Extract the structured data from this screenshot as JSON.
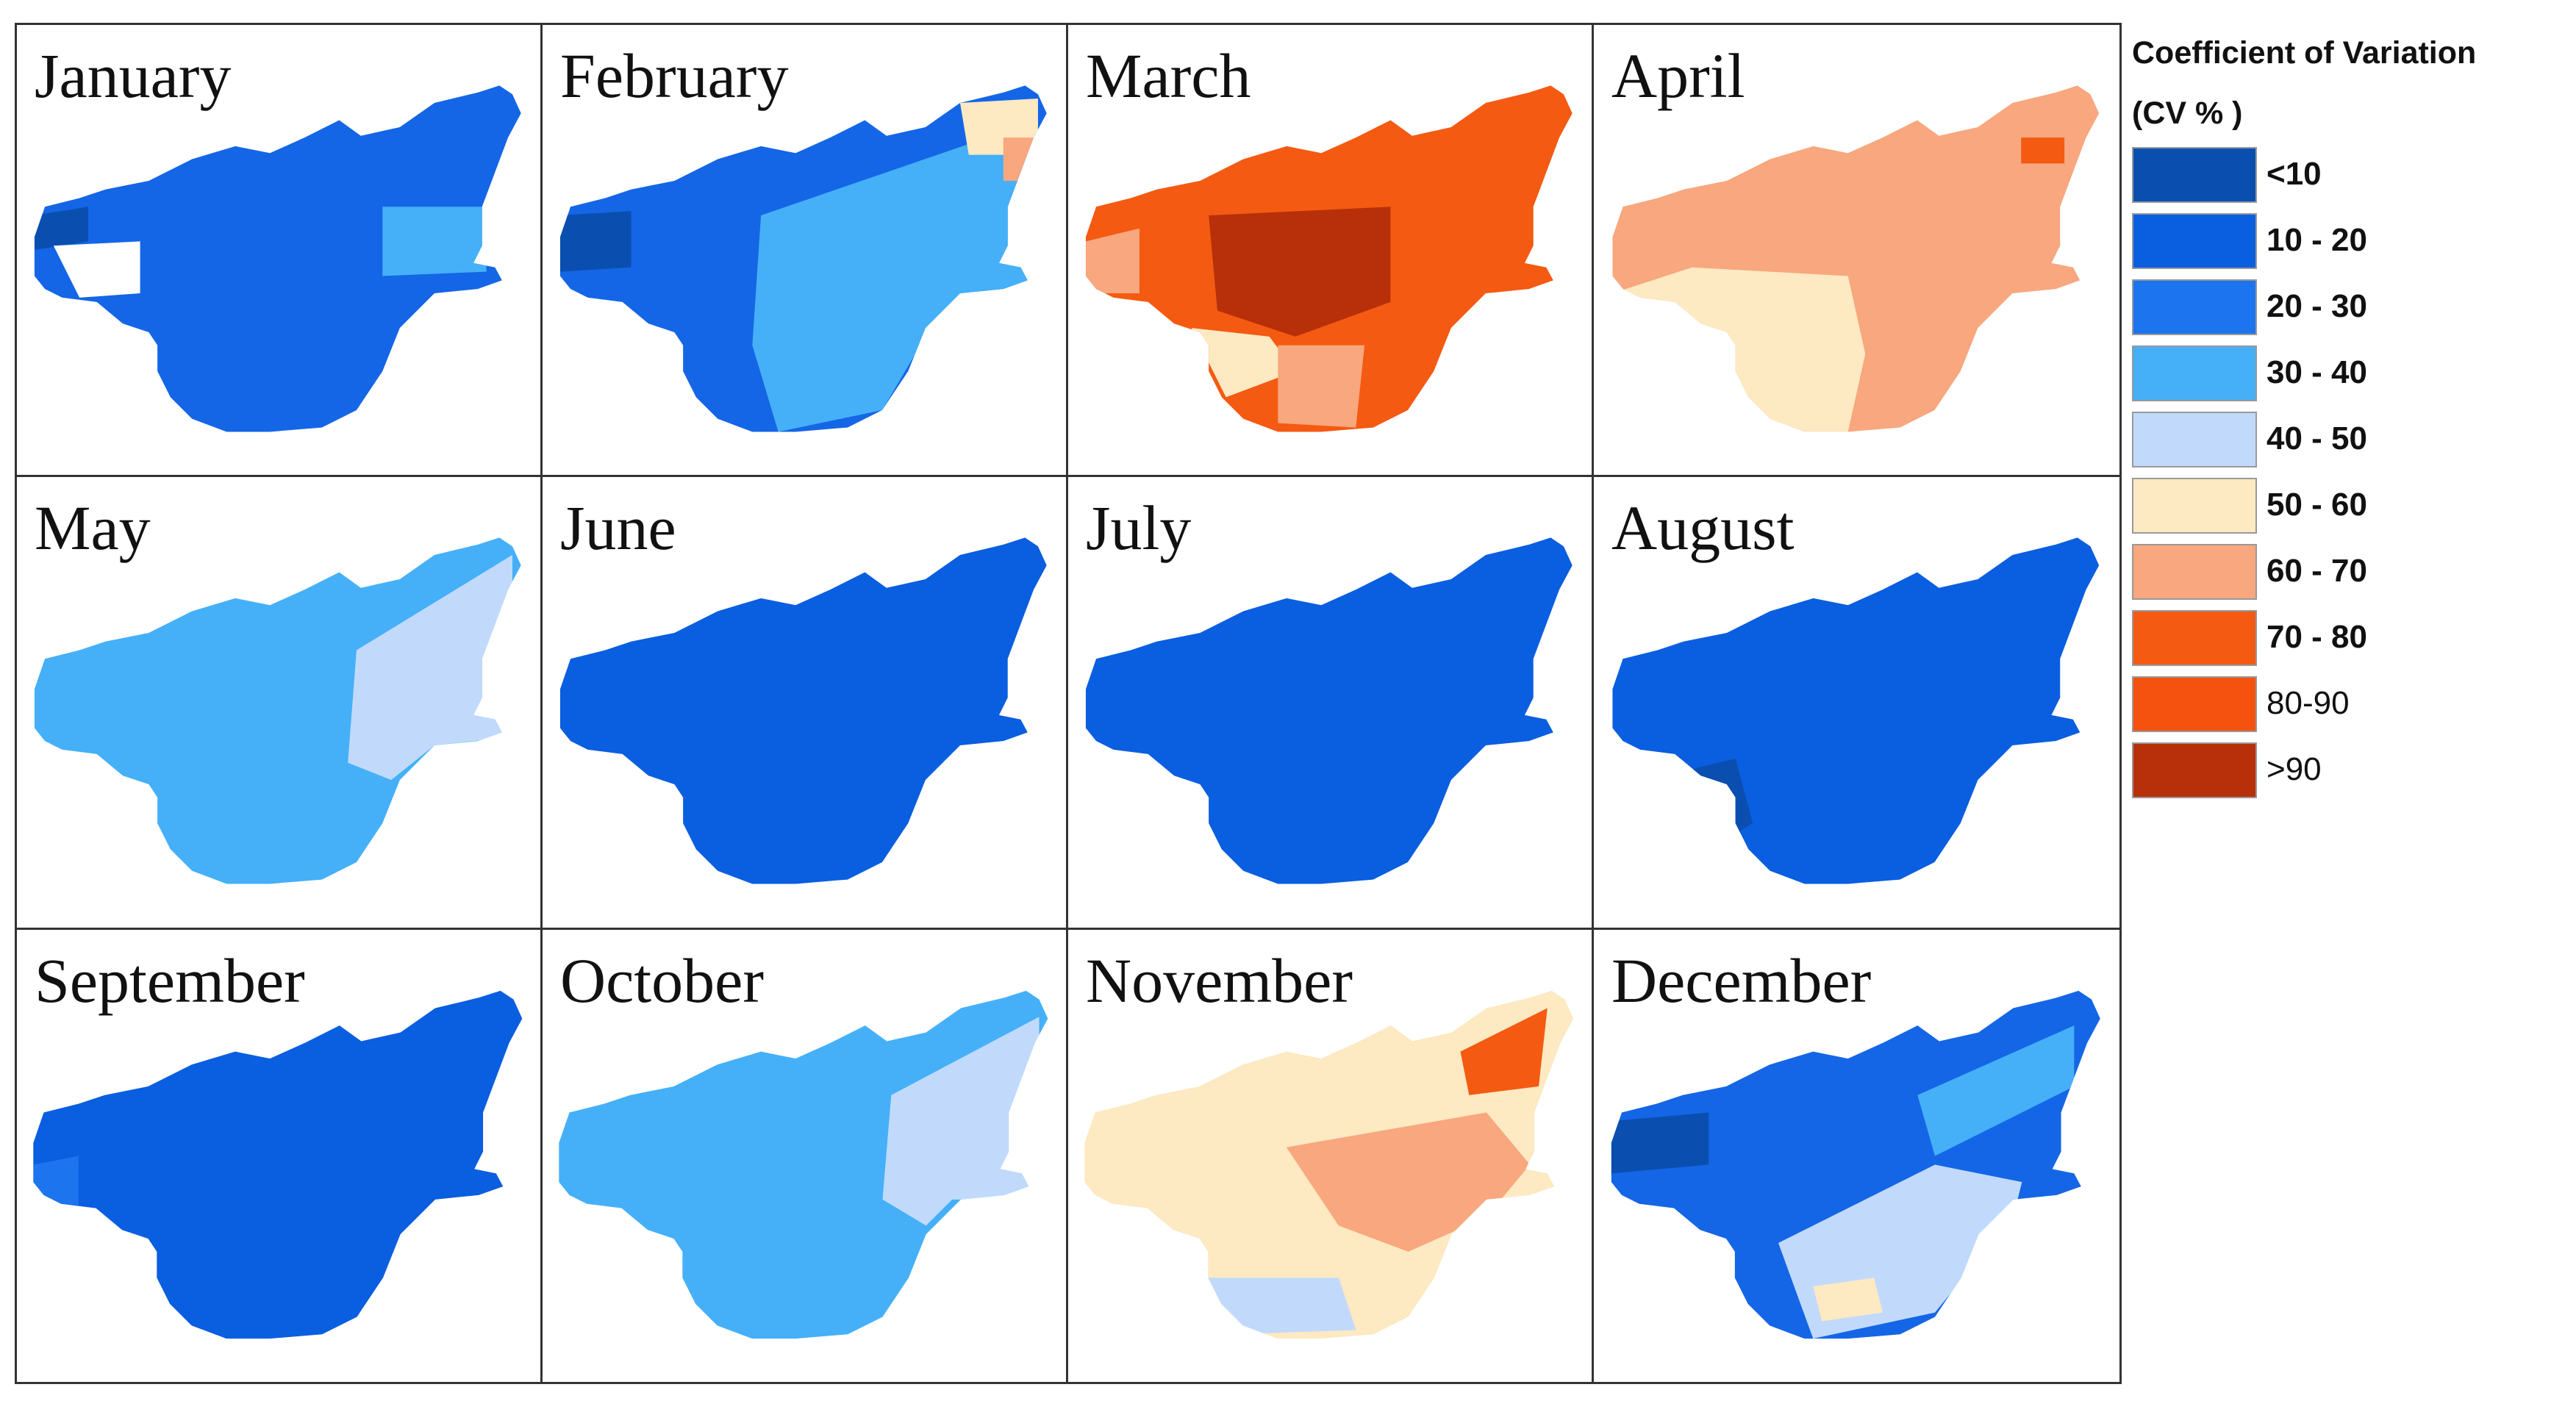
{
  "months": [
    {
      "name": "January",
      "base": "#1466e6",
      "patches": [
        [
          "#0a4fb0"
        ],
        [
          "#ffffff"
        ],
        [
          "#45b0f8"
        ]
      ]
    },
    {
      "name": "February",
      "base": "#1466e6",
      "patches": [
        [
          "#45b0f8"
        ],
        [
          "#0a4fb0"
        ],
        [
          "#fde9c2"
        ],
        [
          "#f8a77e"
        ]
      ]
    },
    {
      "name": "March",
      "base": "#f45a12",
      "patches": [
        [
          "#b83009"
        ],
        [
          "#fde9c2"
        ],
        [
          "#f8a77e"
        ],
        [
          "#f8a77e"
        ]
      ]
    },
    {
      "name": "April",
      "base": "#f8a77e",
      "patches": [
        [
          "#fde9c2"
        ],
        [
          "#f45a12"
        ]
      ]
    },
    {
      "name": "May",
      "base": "#45b0f8",
      "patches": [
        [
          "#c1dafc"
        ]
      ]
    },
    {
      "name": "June",
      "base": "#0a5ee0",
      "patches": []
    },
    {
      "name": "July",
      "base": "#0a5ee0",
      "patches": []
    },
    {
      "name": "August",
      "base": "#0a5ee0",
      "patches": [
        [
          "#0a4fb0"
        ]
      ]
    },
    {
      "name": "September",
      "base": "#0a5ee0",
      "patches": [
        [
          "#1c74ee"
        ]
      ]
    },
    {
      "name": "October",
      "base": "#45b0f8",
      "patches": [
        [
          "#c1dafc"
        ]
      ]
    },
    {
      "name": "November",
      "base": "#fde9c2",
      "patches": [
        [
          "#f8a77e"
        ],
        [
          "#f45a12"
        ],
        [
          "#c1dafc"
        ]
      ]
    },
    {
      "name": "December",
      "base": "#1466e6",
      "patches": [
        [
          "#c1dafc"
        ],
        [
          "#fde9c2"
        ],
        [
          "#45b0f8"
        ],
        [
          "#0a4fb0"
        ]
      ]
    }
  ],
  "legend": {
    "title": "Coefficient of Variation",
    "subtitle": "(CV % )",
    "items": [
      {
        "label": "<10",
        "color": "#0a4fb0",
        "bold": true
      },
      {
        "label": "10 - 20",
        "color": "#0a5ee0",
        "bold": true
      },
      {
        "label": "20 - 30",
        "color": "#1c74ee",
        "bold": true
      },
      {
        "label": "30 - 40",
        "color": "#45b0f8",
        "bold": true
      },
      {
        "label": "40 - 50",
        "color": "#c1dafc",
        "bold": true
      },
      {
        "label": "50 - 60",
        "color": "#fde9c2",
        "bold": true
      },
      {
        "label": "60 - 70",
        "color": "#f8a77e",
        "bold": true
      },
      {
        "label": "70 - 80",
        "color": "#f45a12",
        "bold": true
      },
      {
        "label": "80-90",
        "color": "#f4520e",
        "bold": false
      },
      {
        "label": ">90",
        "color": "#b83009",
        "bold": false
      }
    ]
  }
}
